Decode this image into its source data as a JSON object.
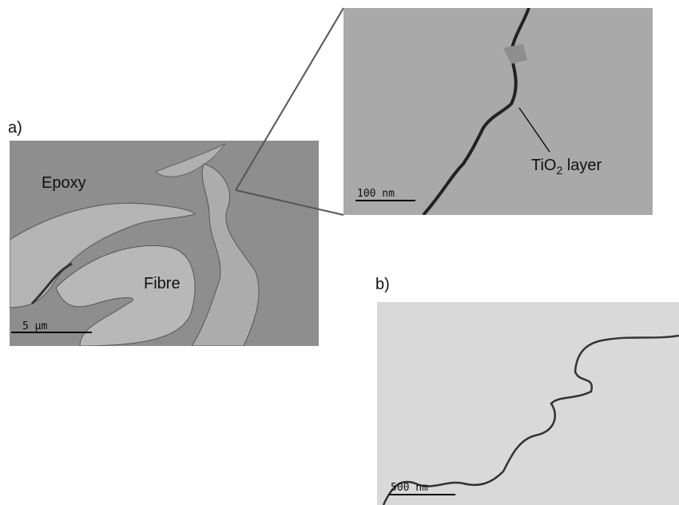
{
  "panel_a": {
    "label": "a)",
    "labels": [
      "Epoxy",
      "Fibre"
    ],
    "scale_bar": "5 µm"
  },
  "inset": {
    "annotation": {
      "text": "TiO",
      "subscript": "2",
      "suffix": " layer"
    },
    "scale_bar": "100 nm"
  },
  "panel_b": {
    "label": "b)",
    "scale_bar": "500 nm"
  }
}
